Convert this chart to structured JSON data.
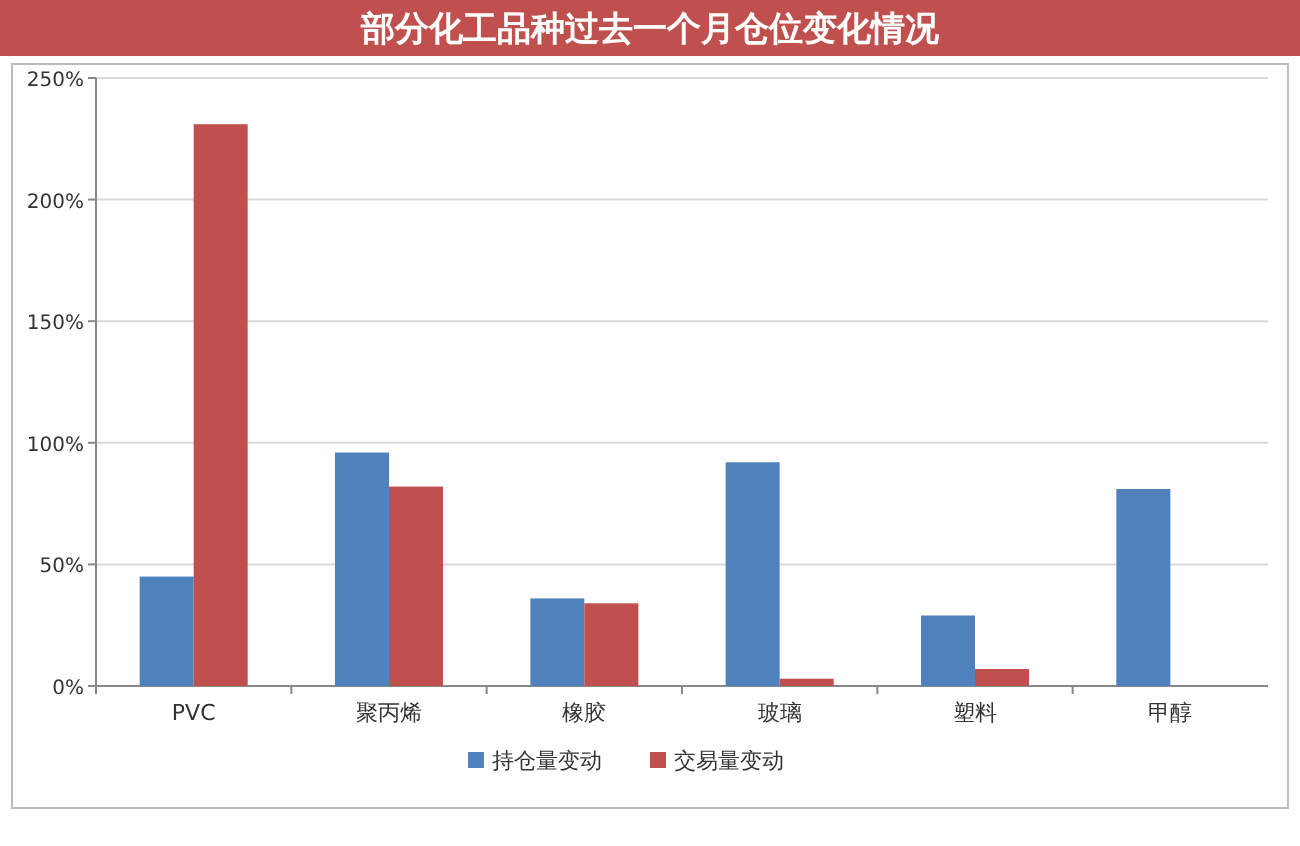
{
  "chart_data": {
    "type": "bar",
    "title": "部分化工品种过去一个月仓位变化情况",
    "categories": [
      "PVC",
      "聚丙烯",
      "橡胶",
      "玻璃",
      "塑料",
      "甲醇"
    ],
    "series": [
      {
        "name": "持仓量变动",
        "color": "#4f81bd",
        "values": [
          45,
          96,
          36,
          92,
          29,
          81
        ]
      },
      {
        "name": "交易量变动",
        "color": "#c0504d",
        "values": [
          231,
          82,
          34,
          3,
          7,
          null
        ]
      }
    ],
    "ylim": [
      0,
      250
    ],
    "yticks": [
      {
        "value": 0,
        "label": "0%"
      },
      {
        "value": 50,
        "label": "50%"
      },
      {
        "value": 100,
        "label": "100%"
      },
      {
        "value": 150,
        "label": "150%"
      },
      {
        "value": 200,
        "label": "200%"
      },
      {
        "value": 250,
        "label": "250%"
      }
    ],
    "grid": "y",
    "legend": "bottom"
  }
}
